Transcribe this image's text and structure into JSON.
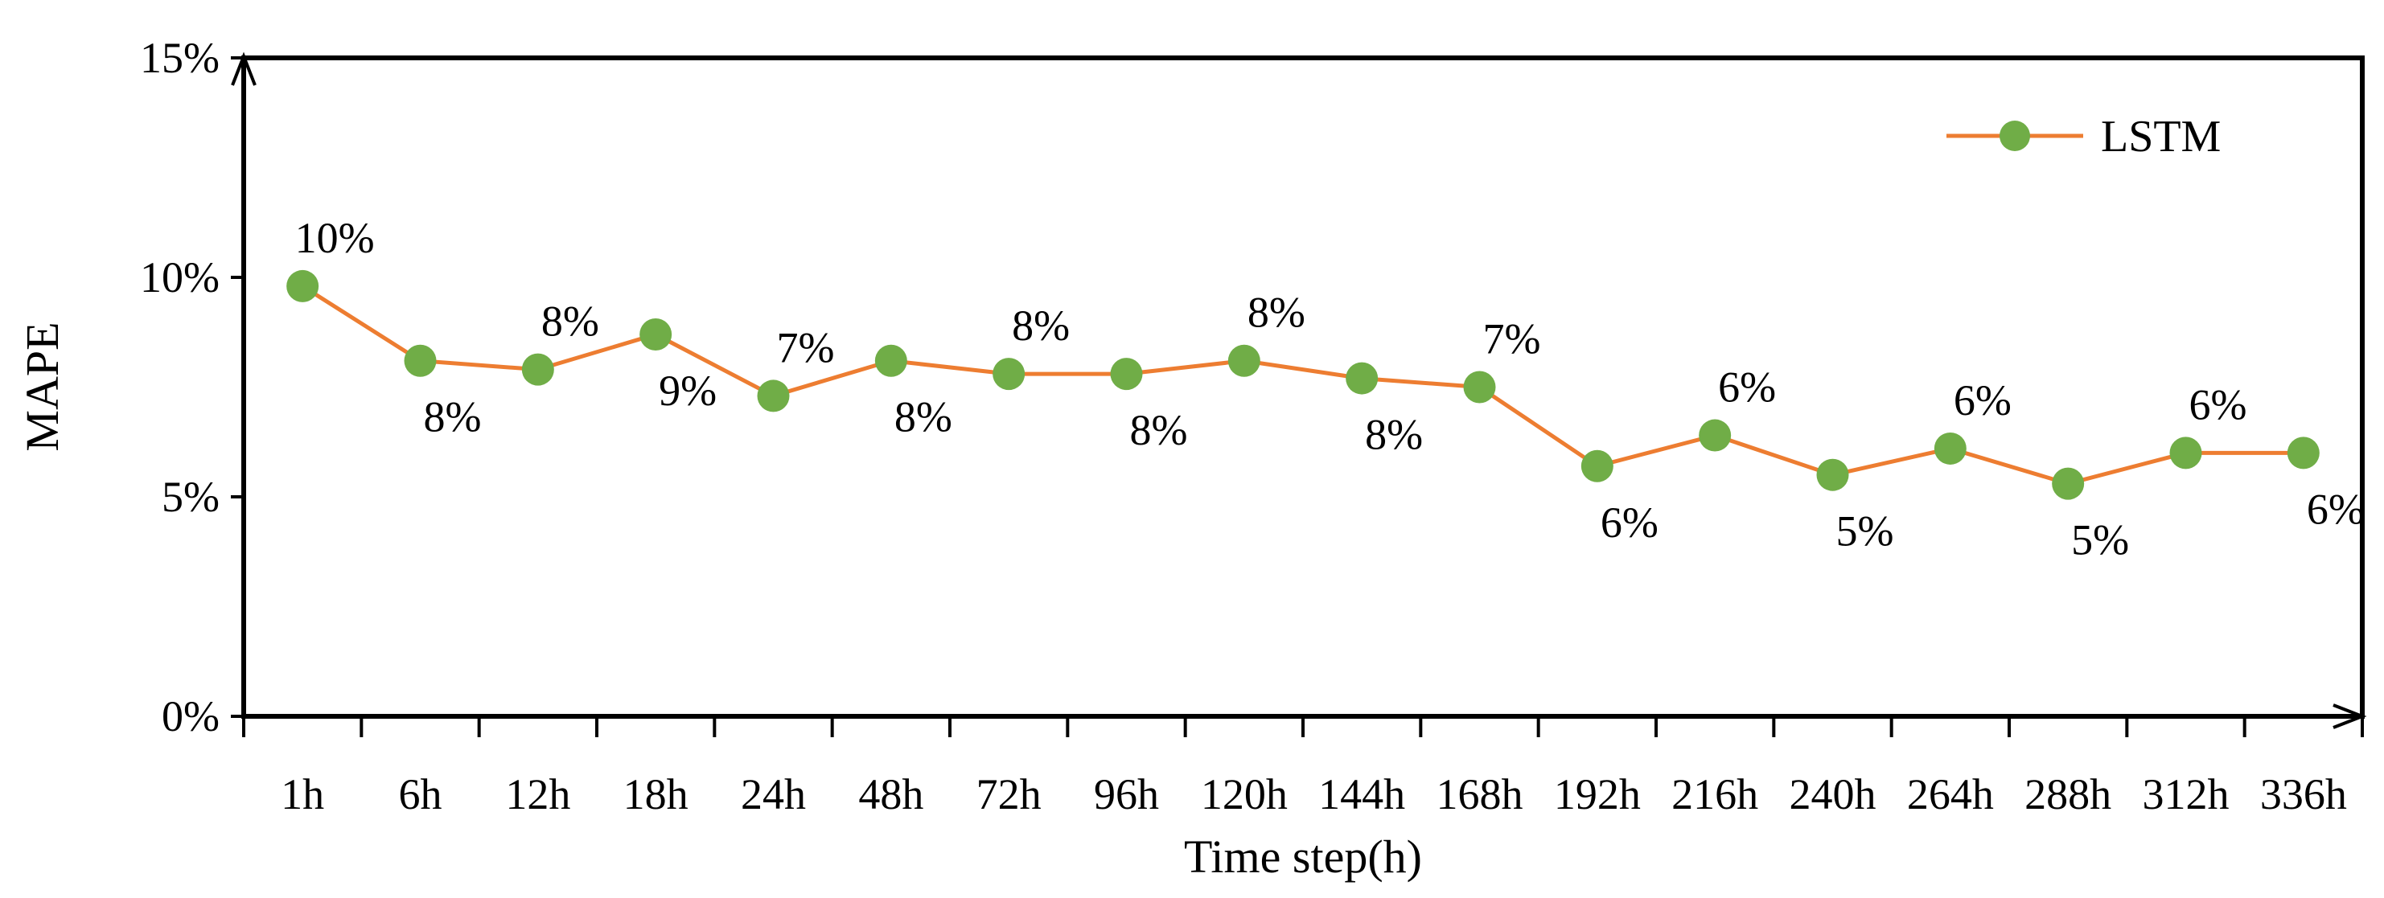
{
  "chart_data": {
    "type": "line",
    "title": "",
    "xlabel": "Time step(h)",
    "ylabel": "MAPE",
    "categories": [
      "1h",
      "6h",
      "12h",
      "18h",
      "24h",
      "48h",
      "72h",
      "96h",
      "120h",
      "144h",
      "168h",
      "192h",
      "216h",
      "240h",
      "264h",
      "288h",
      "312h",
      "336h"
    ],
    "series": [
      {
        "name": "LSTM",
        "values": [
          9.8,
          8.1,
          7.9,
          8.7,
          7.3,
          8.1,
          7.8,
          7.8,
          8.1,
          7.7,
          7.5,
          5.7,
          6.4,
          5.5,
          6.1,
          5.3,
          6.0,
          6.0
        ],
        "labels": [
          "10%",
          "8%",
          "8%",
          "9%",
          "7%",
          "8%",
          "8%",
          "8%",
          "8%",
          "8%",
          "7%",
          "6%",
          "6%",
          "5%",
          "6%",
          "5%",
          "6%",
          "6%"
        ],
        "label_positions": [
          "above",
          "below",
          "above",
          "below",
          "above",
          "below",
          "above",
          "below",
          "above",
          "below",
          "above",
          "below",
          "above",
          "below",
          "above",
          "below",
          "above",
          "below"
        ],
        "line_color": "#ED7D31",
        "marker_color": "#70AD47"
      }
    ],
    "yticks": [
      "0%",
      "5%",
      "10%",
      "15%"
    ],
    "ylim": [
      0,
      15
    ],
    "grid": false,
    "legend": "top-right"
  }
}
